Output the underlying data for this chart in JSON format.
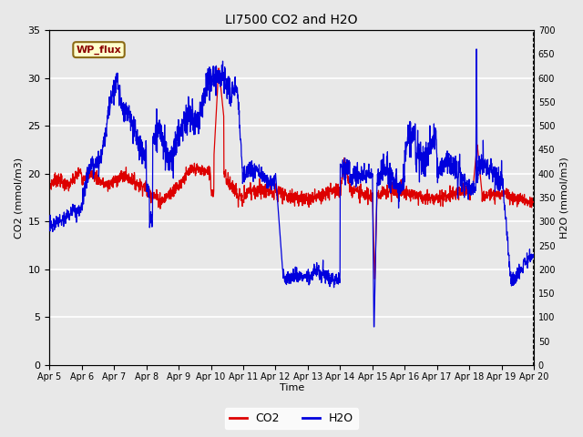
{
  "title": "LI7500 CO2 and H2O",
  "xlabel": "Time",
  "ylabel_left": "CO2 (mmol/m3)",
  "ylabel_right": "H2O (mmol/m3)",
  "ylim_left": [
    0,
    35
  ],
  "ylim_right": [
    0,
    700
  ],
  "yticks_left": [
    0,
    5,
    10,
    15,
    20,
    25,
    30,
    35
  ],
  "yticks_right": [
    0,
    50,
    100,
    150,
    200,
    250,
    300,
    350,
    400,
    450,
    500,
    550,
    600,
    650,
    700
  ],
  "xtick_labels": [
    "Apr 5",
    "Apr 6",
    "Apr 7",
    "Apr 8",
    "Apr 9",
    "Apr 10",
    "Apr 11",
    "Apr 12",
    "Apr 13",
    "Apr 14",
    "Apr 15",
    "Apr 16",
    "Apr 17",
    "Apr 18",
    "Apr 19",
    "Apr 20"
  ],
  "co2_color": "#dd0000",
  "h2o_color": "#0000dd",
  "legend_label_co2": "CO2",
  "legend_label_h2o": "H2O",
  "watermark_text": "WP_flux",
  "bg_color": "#e8e8e8",
  "plot_bg_color": "#e8e8e8",
  "grid_color": "#ffffff",
  "linewidth": 0.9,
  "n_points": 2000
}
